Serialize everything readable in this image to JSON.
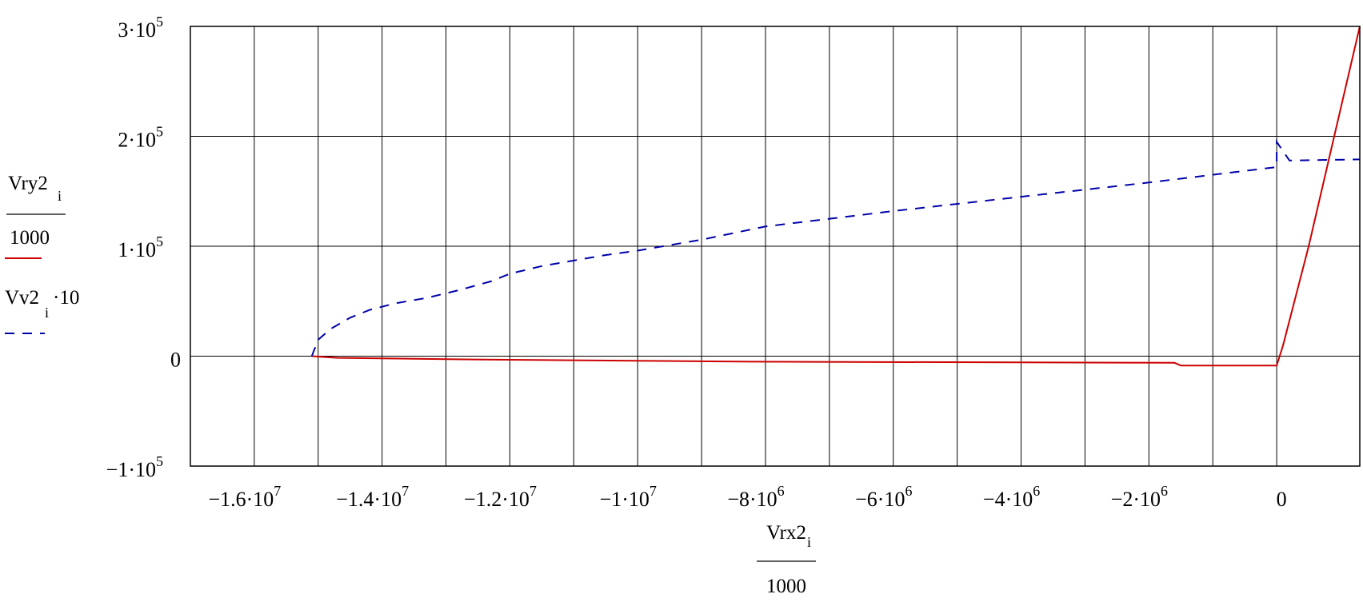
{
  "chart_data": {
    "type": "line",
    "x_label": {
      "numerator": "Vrx2",
      "subscript": "i",
      "denominator": "1000"
    },
    "y_legend": [
      {
        "numerator": "Vry2",
        "subscript": "i",
        "denominator": "1000",
        "color": "#cc0000",
        "style": "solid"
      },
      {
        "text": "Vv2",
        "subscript": "i",
        "suffix": "·10",
        "color": "#0000aa",
        "style": "dashed"
      }
    ],
    "xlim": [
      -17000000,
      1300000
    ],
    "ylim": [
      -100000,
      300000
    ],
    "x_ticks": [
      {
        "value": -16000000,
        "mant": "−1.6",
        "exp": "7"
      },
      {
        "value": -14000000,
        "mant": "−1.4",
        "exp": "7"
      },
      {
        "value": -12000000,
        "mant": "−1.2",
        "exp": "7"
      },
      {
        "value": -10000000,
        "mant": "−1",
        "exp": "7"
      },
      {
        "value": -8000000,
        "mant": "−8",
        "exp": "6"
      },
      {
        "value": -6000000,
        "mant": "−6",
        "exp": "6"
      },
      {
        "value": -4000000,
        "mant": "−4",
        "exp": "6"
      },
      {
        "value": -2000000,
        "mant": "−2",
        "exp": "6"
      },
      {
        "value": 0,
        "mant": "0",
        "exp": ""
      }
    ],
    "x_gridlines": [
      -15000000,
      -13000000,
      -11000000,
      -9000000,
      -7000000,
      -5000000,
      -3000000,
      -1000000
    ],
    "y_ticks": [
      {
        "value": 300000,
        "mant": "3",
        "exp": "5"
      },
      {
        "value": 200000,
        "mant": "2",
        "exp": "5"
      },
      {
        "value": 100000,
        "mant": "1",
        "exp": "5"
      },
      {
        "value": 0,
        "mant": "0",
        "exp": ""
      },
      {
        "value": -100000,
        "mant": "−1",
        "exp": "5"
      }
    ],
    "grid": true,
    "series": [
      {
        "color": "#cc0000",
        "dash": "solid",
        "points": [
          [
            -15100000,
            0
          ],
          [
            -14700000,
            -1500
          ],
          [
            -12600000,
            -3000
          ],
          [
            -8200000,
            -5000
          ],
          [
            -1600000,
            -6000
          ],
          [
            -1500000,
            -8500
          ],
          [
            0,
            -8500
          ],
          [
            100000,
            10000
          ],
          [
            500000,
            100000
          ],
          [
            900000,
            200000
          ],
          [
            1300000,
            300000
          ]
        ]
      },
      {
        "color": "#0000aa",
        "dash": "dashed",
        "points": [
          [
            -15100000,
            0
          ],
          [
            -15000000,
            15000
          ],
          [
            -14800000,
            25000
          ],
          [
            -14500000,
            35000
          ],
          [
            -14200000,
            42000
          ],
          [
            -13800000,
            48000
          ],
          [
            -13300000,
            53000
          ],
          [
            -12800000,
            60000
          ],
          [
            -12300000,
            68000
          ],
          [
            -12000000,
            75000
          ],
          [
            -11500000,
            82000
          ],
          [
            -11000000,
            87000
          ],
          [
            -10500000,
            92000
          ],
          [
            -10000000,
            96000
          ],
          [
            -9000000,
            106000
          ],
          [
            -8000000,
            118000
          ],
          [
            -6000000,
            132000
          ],
          [
            -4000000,
            145000
          ],
          [
            -2000000,
            158000
          ],
          [
            -1000000,
            165000
          ],
          [
            0,
            172000
          ],
          [
            0,
            195000
          ],
          [
            200000,
            178000
          ],
          [
            1300000,
            179000
          ]
        ]
      }
    ]
  }
}
